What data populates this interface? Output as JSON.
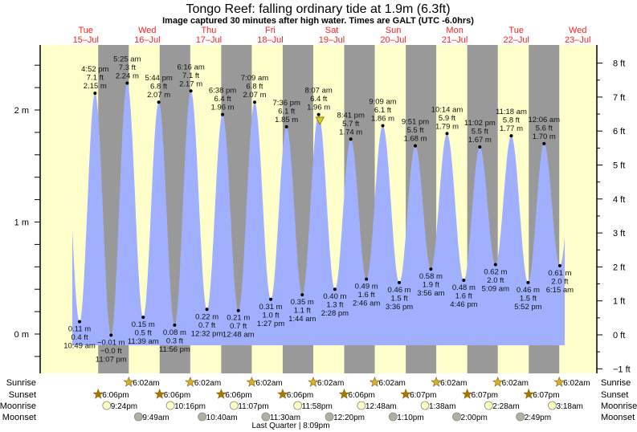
{
  "chart_data": {
    "type": "area",
    "title": "Tongo Reef: falling  ordinary tide at 1.9m (6.3ft)",
    "subtitle": "Image captured 30 minutes after high water. Times are GALT (UTC -6.0hrs)",
    "days": [
      {
        "name": "Tue",
        "date": "15–Jul"
      },
      {
        "name": "Wed",
        "date": "16–Jul"
      },
      {
        "name": "Thu",
        "date": "17–Jul"
      },
      {
        "name": "Fri",
        "date": "18–Jul"
      },
      {
        "name": "Sat",
        "date": "19–Jul"
      },
      {
        "name": "Sun",
        "date": "20–Jul"
      },
      {
        "name": "Mon",
        "date": "21–Jul"
      },
      {
        "name": "Tue",
        "date": "22–Jul"
      },
      {
        "name": "Wed",
        "date": "23–Jul"
      }
    ],
    "x_unit": "hours since Tue 15-Jul 00:00",
    "left_axis": {
      "unit": "m",
      "ylim": [
        -0.3,
        2.57
      ],
      "ticks": [
        "2 m",
        "1 m",
        "0 m"
      ],
      "tick_values": [
        2,
        1,
        0
      ]
    },
    "right_axis": {
      "unit": "ft",
      "ticks": [
        "8 ft",
        "7 ft",
        "6 ft",
        "5 ft",
        "4 ft",
        "3 ft",
        "2 ft",
        "1 ft",
        "0 ft",
        "−1 ft"
      ],
      "tick_values": [
        8,
        7,
        6,
        5,
        4,
        3,
        2,
        1,
        0,
        -1
      ]
    },
    "curve_range_hours": [
      8.0,
      200.2
    ],
    "current": {
      "hours": 104.62,
      "height_m": 1.9
    },
    "tides": [
      {
        "type": "low",
        "h": 10.82,
        "m": "0.11 m",
        "ft": "0.4 ft",
        "time": "10:49 am",
        "v": 0.11
      },
      {
        "type": "high",
        "h": 16.87,
        "m": "2.15 m",
        "ft": "7.1 ft",
        "time": "4:52 pm",
        "v": 2.15
      },
      {
        "type": "low",
        "h": 23.12,
        "m": "−0.01 m",
        "ft": "−0.0 ft",
        "time": "11:07 pm",
        "v": -0.01
      },
      {
        "type": "high",
        "h": 29.42,
        "m": "2.24 m",
        "ft": "7.3 ft",
        "time": "5:25 am",
        "v": 2.24
      },
      {
        "type": "low",
        "h": 35.65,
        "m": "0.15 m",
        "ft": "0.5 ft",
        "time": "11:39 am",
        "v": 0.15
      },
      {
        "type": "high",
        "h": 41.73,
        "m": "2.07 m",
        "ft": "6.8 ft",
        "time": "5:44 pm",
        "v": 2.07
      },
      {
        "type": "low",
        "h": 47.93,
        "m": "0.08 m",
        "ft": "0.3 ft",
        "time": "11:56 pm",
        "v": 0.08
      },
      {
        "type": "high",
        "h": 54.27,
        "m": "2.17 m",
        "ft": "7.1 ft",
        "time": "6:16 am",
        "v": 2.17
      },
      {
        "type": "low",
        "h": 60.53,
        "m": "0.22 m",
        "ft": "0.7 ft",
        "time": "12:32 pm",
        "v": 0.22
      },
      {
        "type": "high",
        "h": 66.63,
        "m": "1.96 m",
        "ft": "6.4 ft",
        "time": "6:38 pm",
        "v": 1.96
      },
      {
        "type": "low",
        "h": 72.8,
        "m": "0.21 m",
        "ft": "0.7 ft",
        "time": "12:48 am",
        "v": 0.21
      },
      {
        "type": "high",
        "h": 79.15,
        "m": "2.07 m",
        "ft": "6.8 ft",
        "time": "7:09 am",
        "v": 2.07
      },
      {
        "type": "low",
        "h": 85.45,
        "m": "0.31 m",
        "ft": "1.0 ft",
        "time": "1:27 pm",
        "v": 0.31
      },
      {
        "type": "high",
        "h": 91.6,
        "m": "1.85 m",
        "ft": "6.1 ft",
        "time": "7:36 pm",
        "v": 1.85
      },
      {
        "type": "low",
        "h": 97.73,
        "m": "0.35 m",
        "ft": "1.1 ft",
        "time": "1:44 am",
        "v": 0.35
      },
      {
        "type": "high",
        "h": 104.12,
        "m": "1.96 m",
        "ft": "6.4 ft",
        "time": "8:07 am",
        "v": 1.96
      },
      {
        "type": "low",
        "h": 110.47,
        "m": "0.40 m",
        "ft": "1.3 ft",
        "time": "2:28 pm",
        "v": 0.4
      },
      {
        "type": "high",
        "h": 116.68,
        "m": "1.74 m",
        "ft": "5.7 ft",
        "time": "8:41 pm",
        "v": 1.74
      },
      {
        "type": "low",
        "h": 122.77,
        "m": "0.49 m",
        "ft": "1.6 ft",
        "time": "2:46 am",
        "v": 0.49
      },
      {
        "type": "high",
        "h": 129.15,
        "m": "1.86 m",
        "ft": "6.1 ft",
        "time": "9:09 am",
        "v": 1.86
      },
      {
        "type": "low",
        "h": 135.6,
        "m": "0.46 m",
        "ft": "1.5 ft",
        "time": "3:36 pm",
        "v": 0.46
      },
      {
        "type": "high",
        "h": 141.85,
        "m": "1.68 m",
        "ft": "5.5 ft",
        "time": "9:51 pm",
        "v": 1.68
      },
      {
        "type": "low",
        "h": 147.93,
        "m": "0.58 m",
        "ft": "1.9 ft",
        "time": "3:56 am",
        "v": 0.58
      },
      {
        "type": "high",
        "h": 154.23,
        "m": "1.79 m",
        "ft": "5.9 ft",
        "time": "10:14 am",
        "v": 1.79
      },
      {
        "type": "low",
        "h": 160.77,
        "m": "0.48 m",
        "ft": "1.6 ft",
        "time": "4:46 pm",
        "v": 0.48
      },
      {
        "type": "high",
        "h": 167.03,
        "m": "1.67 m",
        "ft": "5.5 ft",
        "time": "11:02 pm",
        "v": 1.67
      },
      {
        "type": "low",
        "h": 173.15,
        "m": "0.62 m",
        "ft": "2.0 ft",
        "time": "5:09 am",
        "v": 0.62
      },
      {
        "type": "high",
        "h": 179.3,
        "m": "1.77 m",
        "ft": "5.8 ft",
        "time": "11:18 am",
        "v": 1.77
      },
      {
        "type": "low",
        "h": 185.87,
        "m": "0.46 m",
        "ft": "1.5 ft",
        "time": "5:52 pm",
        "v": 0.46
      },
      {
        "type": "high",
        "h": 192.1,
        "m": "1.70 m",
        "ft": "5.6 ft",
        "time": "12:06 am",
        "v": 1.7
      },
      {
        "type": "low",
        "h": 198.25,
        "m": "0.61 m",
        "ft": "2.0 ft",
        "time": "6:15 am",
        "v": 0.61
      }
    ],
    "rows": {
      "sunrise": {
        "label": "Sunrise",
        "events": [
          {
            "h": 30.03,
            "t": "6:02am"
          },
          {
            "h": 54.03,
            "t": "6:02am"
          },
          {
            "h": 78.03,
            "t": "6:02am"
          },
          {
            "h": 102.03,
            "t": "6:02am"
          },
          {
            "h": 126.03,
            "t": "6:02am"
          },
          {
            "h": 150.03,
            "t": "6:02am"
          },
          {
            "h": 174.03,
            "t": "6:02am"
          },
          {
            "h": 198.03,
            "t": "6:02am"
          }
        ]
      },
      "sunset": {
        "label": "Sunset",
        "events": [
          {
            "h": 18.1,
            "t": "6:06pm"
          },
          {
            "h": 42.1,
            "t": "6:06pm"
          },
          {
            "h": 66.1,
            "t": "6:06pm"
          },
          {
            "h": 90.1,
            "t": "6:06pm"
          },
          {
            "h": 114.1,
            "t": "6:06pm"
          },
          {
            "h": 138.12,
            "t": "6:07pm"
          },
          {
            "h": 162.12,
            "t": "6:07pm"
          },
          {
            "h": 186.12,
            "t": "6:07pm"
          }
        ]
      },
      "moonrise": {
        "label": "Moonrise",
        "events": [
          {
            "h": 21.4,
            "t": "9:24pm"
          },
          {
            "h": 46.27,
            "t": "10:16pm"
          },
          {
            "h": 71.12,
            "t": "11:07pm"
          },
          {
            "h": 95.97,
            "t": "11:58pm"
          },
          {
            "h": 120.8,
            "t": "12:48am"
          },
          {
            "h": 145.63,
            "t": "1:38am"
          },
          {
            "h": 170.47,
            "t": "2:28am"
          },
          {
            "h": 195.3,
            "t": "3:18am"
          }
        ]
      },
      "moonset": {
        "label": "Moonset",
        "events": [
          {
            "h": 33.82,
            "t": "9:49am"
          },
          {
            "h": 58.67,
            "t": "10:40am"
          },
          {
            "h": 83.5,
            "t": "11:30am"
          },
          {
            "h": 108.33,
            "t": "12:20pm"
          },
          {
            "h": 133.17,
            "t": "1:10pm"
          },
          {
            "h": 158.0,
            "t": "2:00pm"
          },
          {
            "h": 182.82,
            "t": "2:49pm"
          }
        ]
      }
    },
    "moon_phase": "Last Quarter | 8:09pm",
    "colors": {
      "day": "#ffffcc",
      "night": "#999999",
      "water": "#a0b0ff",
      "day_label": "#ff2020",
      "sunrise": "#d8b030",
      "sunset": "#a87800",
      "moonrise": "#ffffc0",
      "moonset": "#b0b0a0",
      "marker": "#d8d020"
    }
  }
}
